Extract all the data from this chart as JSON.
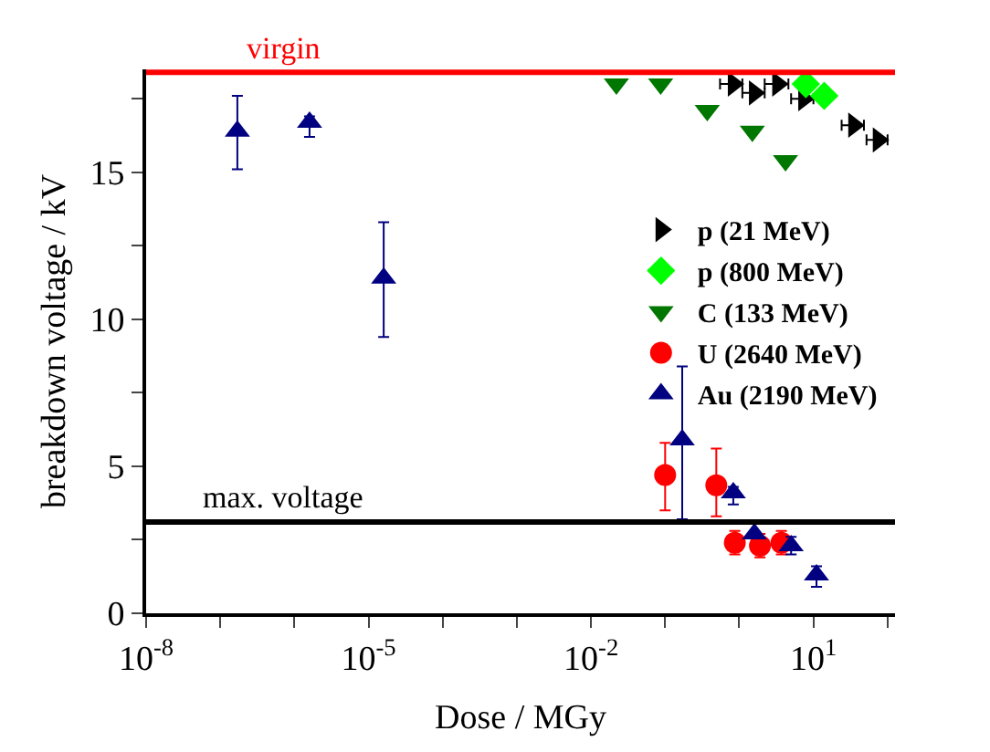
{
  "chart_data": {
    "type": "scatter",
    "xlabel": "Dose / MGy",
    "ylabel": "breakdown voltage / kV",
    "log": "x",
    "legend": "right",
    "xlim": [
      1e-08,
      126
    ],
    "ylim": [
      0,
      18.5
    ],
    "xticks": [
      {
        "value": 1e-08,
        "label": "10$^{-8}$"
      },
      {
        "value": 1e-07,
        "label": null
      },
      {
        "value": 1e-06,
        "label": null
      },
      {
        "value": 1e-05,
        "label": "10$^{-5}$"
      },
      {
        "value": 0.0001,
        "label": null
      },
      {
        "value": 0.001,
        "label": null
      },
      {
        "value": 0.01,
        "label": "10$^{-2}$"
      },
      {
        "value": 0.1,
        "label": null
      },
      {
        "value": 1,
        "label": null
      },
      {
        "value": 10,
        "label": "10$^{1}$"
      },
      {
        "value": 100,
        "label": null
      }
    ],
    "yticks": [
      0,
      {
        "value": 2.5,
        "label": null
      },
      5,
      {
        "value": 7.5,
        "label": null
      },
      10,
      {
        "value": 12.5,
        "label": null
      },
      15,
      {
        "value": 17.5,
        "label": null
      }
    ],
    "ref_lines": [
      {
        "axis": "y",
        "value": 18.4,
        "label": "virgin",
        "color": "#ff0000"
      },
      {
        "axis": "y",
        "value": 3.1,
        "label": "max. voltage",
        "color": "#000000"
      }
    ],
    "series": [
      {
        "name": "p (21 MeV)",
        "color": "#000000",
        "marker": "triangle-right",
        "x": [
          0.83,
          1.6,
          3.3,
          7.4,
          35,
          75
        ],
        "values": [
          18.0,
          17.7,
          18.0,
          17.5,
          16.6,
          16.1
        ],
        "xerrors": [
          [
            0.55,
            1.1
          ],
          [
            1.1,
            2.2
          ],
          [
            2.2,
            4.6
          ],
          [
            5,
            10
          ],
          [
            24,
            48
          ],
          [
            52,
            100
          ]
        ]
      },
      {
        "name": "p (800 MeV)",
        "color": "#00ff00",
        "marker": "diamond",
        "x": [
          7.9,
          14
        ],
        "values": [
          18.0,
          17.6
        ]
      },
      {
        "name": "C (133 MeV)",
        "color": "#007700",
        "marker": "triangle-down",
        "x": [
          0.022,
          0.087,
          0.37,
          1.5,
          4.2
        ],
        "values": [
          18.0,
          18.0,
          17.1,
          16.4,
          15.4
        ]
      },
      {
        "name": "U (2640 MeV)",
        "color": "#ff0000",
        "marker": "circle",
        "x": [
          0.1,
          0.49,
          0.87,
          1.9,
          3.7
        ],
        "values": [
          4.7,
          4.35,
          2.4,
          2.3,
          2.4
        ],
        "errors": [
          [
            3.5,
            5.8
          ],
          [
            3.3,
            5.6
          ],
          [
            2.0,
            2.8
          ],
          [
            1.9,
            2.7
          ],
          [
            2.0,
            2.8
          ]
        ]
      },
      {
        "name": "Au (2190 MeV)",
        "color": "#000080",
        "marker": "triangle",
        "x": [
          1.7e-07,
          1.6e-06,
          1.6e-05,
          0.17,
          0.83,
          1.6,
          5,
          11
        ],
        "values": [
          16.4,
          16.7,
          11.4,
          5.9,
          4.1,
          2.7,
          2.3,
          1.3
        ],
        "errors": [
          [
            15.1,
            17.6
          ],
          [
            16.2,
            16.9
          ],
          [
            9.4,
            13.3
          ],
          [
            3.2,
            8.4
          ],
          [
            3.7,
            4.3
          ],
          null,
          [
            2.0,
            2.6
          ],
          [
            0.9,
            1.6
          ]
        ]
      }
    ]
  }
}
